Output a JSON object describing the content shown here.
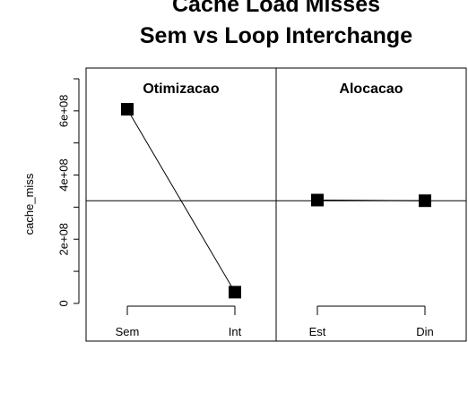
{
  "chart_data": {
    "type": "line",
    "title_line1": "Cache Load Misses",
    "title_line2": "Sem vs Loop Interchange",
    "ylabel": "cache_miss",
    "ylim": [
      -70000000,
      700000000
    ],
    "yticks": [
      0,
      200000000,
      400000000,
      600000000
    ],
    "ytick_labels": [
      "0",
      "2e+08",
      "4e+08",
      "6e+08"
    ],
    "grand_mean": 320000000,
    "panels": [
      {
        "title": "Otimizacao",
        "categories": [
          "Sem",
          "Int"
        ],
        "values": [
          605000000,
          35000000
        ]
      },
      {
        "title": "Alocacao",
        "categories": [
          "Est",
          "Din"
        ],
        "values": [
          322000000,
          320000000
        ]
      }
    ]
  }
}
